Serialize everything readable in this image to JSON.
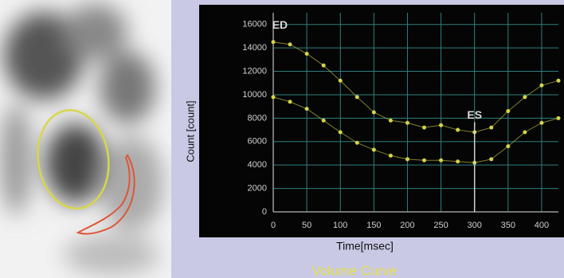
{
  "chart_data": {
    "type": "line",
    "x_label": "Time[msec]",
    "y_label": "Count [count]",
    "caption": "Volume Curve",
    "x": [
      0,
      25,
      50,
      75,
      100,
      125,
      150,
      175,
      200,
      225,
      250,
      275,
      300,
      325,
      350,
      375,
      400,
      425
    ],
    "series": [
      {
        "color": "#d6d44a",
        "values": [
          14500,
          14300,
          13500,
          12500,
          11200,
          9800,
          8500,
          7800,
          7600,
          7200,
          7400,
          7000,
          6800,
          7200,
          8600,
          9800,
          10800,
          11200
        ]
      },
      {
        "color": "#d6d44a",
        "values": [
          9800,
          9400,
          8800,
          7800,
          6800,
          5900,
          5300,
          4800,
          4500,
          4400,
          4400,
          4300,
          4200,
          4500,
          5600,
          6800,
          7600,
          8000
        ]
      }
    ],
    "annotations": [
      {
        "text": "ED",
        "x": 10,
        "y": 15900
      },
      {
        "text": "ES",
        "x": 300,
        "y": 8200
      }
    ],
    "xlim": [
      0,
      425
    ],
    "ylim": [
      0,
      17000
    ],
    "xticks": [
      0,
      50,
      100,
      150,
      200,
      250,
      300,
      350,
      400
    ],
    "yticks": [
      0,
      2000,
      4000,
      6000,
      8000,
      10000,
      12000,
      14000,
      16000
    ],
    "grid": true,
    "grid_color": "#2f7f7c"
  }
}
